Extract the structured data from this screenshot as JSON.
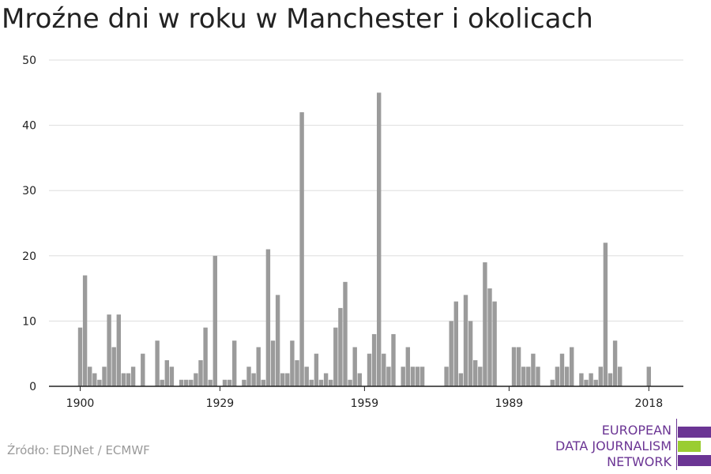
{
  "title": "Mroźne dni w roku w Manchester i okolicach",
  "source": "Źródło: EDJNet / ECMWF",
  "logo": {
    "lines": [
      "EUROPEAN",
      "DATA JOURNALISM",
      "NETWORK"
    ],
    "colors": {
      "purple": "#6b3594",
      "green": "#9acd32"
    }
  },
  "chart_data": {
    "type": "bar",
    "title": "Mroźne dni w roku w Manchester i okolicach",
    "xlabel": "",
    "ylabel": "",
    "ylim": [
      0,
      50
    ],
    "yticks": [
      0,
      10,
      20,
      30,
      40,
      50
    ],
    "xticks": [
      1900,
      1929,
      1959,
      1989,
      2018
    ],
    "xlim": [
      1899,
      2023
    ],
    "grid": true,
    "bar_color": "#9b9b9b",
    "x": [
      1900,
      1901,
      1902,
      1903,
      1904,
      1905,
      1906,
      1907,
      1908,
      1909,
      1910,
      1911,
      1912,
      1913,
      1914,
      1915,
      1916,
      1917,
      1918,
      1919,
      1920,
      1921,
      1922,
      1923,
      1924,
      1925,
      1926,
      1927,
      1928,
      1929,
      1930,
      1931,
      1932,
      1933,
      1934,
      1935,
      1936,
      1937,
      1938,
      1939,
      1940,
      1941,
      1942,
      1943,
      1944,
      1945,
      1946,
      1947,
      1948,
      1949,
      1950,
      1951,
      1952,
      1953,
      1954,
      1955,
      1956,
      1957,
      1958,
      1959,
      1960,
      1961,
      1962,
      1963,
      1964,
      1965,
      1966,
      1967,
      1968,
      1969,
      1970,
      1971,
      1972,
      1973,
      1974,
      1975,
      1976,
      1977,
      1978,
      1979,
      1980,
      1981,
      1982,
      1983,
      1984,
      1985,
      1986,
      1987,
      1988,
      1989,
      1990,
      1991,
      1992,
      1993,
      1994,
      1995,
      1996,
      1997,
      1998,
      1999,
      2000,
      2001,
      2002,
      2003,
      2004,
      2005,
      2006,
      2007,
      2008,
      2009,
      2010,
      2011,
      2012,
      2013,
      2014,
      2015,
      2016,
      2017,
      2018
    ],
    "values": [
      9,
      17,
      3,
      2,
      1,
      3,
      11,
      6,
      11,
      2,
      2,
      3,
      0,
      5,
      0,
      0,
      7,
      1,
      4,
      3,
      0,
      1,
      1,
      1,
      2,
      4,
      9,
      1,
      20,
      0,
      1,
      1,
      7,
      0,
      1,
      3,
      2,
      6,
      1,
      21,
      7,
      14,
      2,
      2,
      7,
      4,
      42,
      3,
      1,
      5,
      1,
      2,
      1,
      9,
      12,
      16,
      1,
      6,
      2,
      0,
      5,
      8,
      45,
      5,
      3,
      8,
      0,
      3,
      6,
      3,
      3,
      3,
      0,
      0,
      0,
      0,
      3,
      10,
      13,
      2,
      14,
      10,
      4,
      3,
      19,
      15,
      13,
      0,
      0,
      0,
      6,
      6,
      3,
      3,
      5,
      3,
      0,
      0,
      1,
      3,
      5,
      3,
      6,
      0,
      2,
      1,
      2,
      1,
      3,
      22,
      2,
      7,
      3,
      0,
      0,
      0,
      0,
      0,
      3
    ]
  }
}
